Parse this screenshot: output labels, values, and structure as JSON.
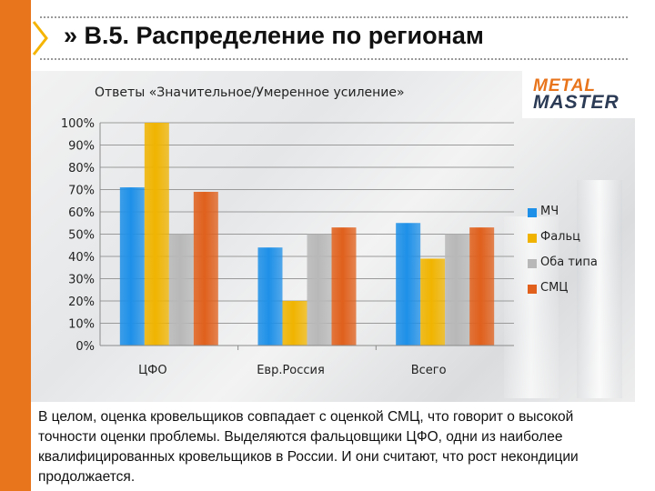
{
  "slide": {
    "title": "» В.5. Распределение по регионам",
    "caption": "В целом, оценка кровельщиков совпадает с оценкой СМЦ, что говорит о высокой точности оценки проблемы. Выделяются фальцовщики ЦФО, одни из наиболее квалифицированных кровельщиков в России. И они считают, что рост некондиции продолжается.",
    "accent_color": "#e8741c"
  },
  "logo": {
    "line1": "METAL",
    "line2": "MASTER",
    "icon": "metal-master-logo"
  },
  "chart_data": {
    "type": "bar",
    "title": "Ответы «Значительное/Умеренное усиление»",
    "xlabel": "",
    "ylabel": "",
    "categories": [
      "ЦФО",
      "Евр.Россия",
      "Всего"
    ],
    "series": [
      {
        "name": "МЧ",
        "values": [
          71,
          44,
          55
        ],
        "color": "#1e90e8"
      },
      {
        "name": "Фальц",
        "values": [
          100,
          20,
          39
        ],
        "color": "#f0b400"
      },
      {
        "name": "Оба типа",
        "values": [
          50,
          50,
          50
        ],
        "color": "#b8b8b8"
      },
      {
        "name": "СМЦ",
        "values": [
          69,
          53,
          53
        ],
        "color": "#e0601c"
      }
    ],
    "ylim": [
      0,
      100
    ],
    "yticks": [
      "0%",
      "10%",
      "20%",
      "30%",
      "40%",
      "50%",
      "60%",
      "70%",
      "80%",
      "90%",
      "100%"
    ],
    "grid": true,
    "legend_position": "right"
  }
}
